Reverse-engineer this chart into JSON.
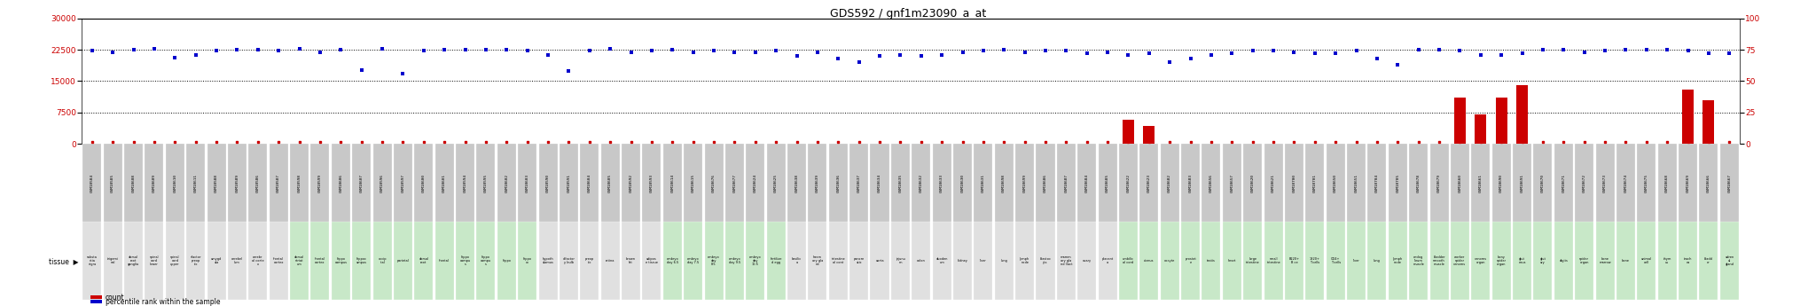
{
  "title": "GDS592 / gnf1m23090_a_at",
  "gsm_ids": [
    "GSM18584",
    "GSM18585",
    "GSM18608",
    "GSM18609",
    "GSM18610",
    "GSM18611",
    "GSM18588",
    "GSM18589",
    "GSM18586",
    "GSM18587",
    "GSM18598",
    "GSM18599",
    "GSM18606",
    "GSM18607",
    "GSM18596",
    "GSM18597",
    "GSM18600",
    "GSM18601",
    "GSM18594",
    "GSM18595",
    "GSM18602",
    "GSM18603",
    "GSM18590",
    "GSM18591",
    "GSM18604",
    "GSM18605",
    "GSM18592",
    "GSM18593",
    "GSM18614",
    "GSM18615",
    "GSM18676",
    "GSM18677",
    "GSM18624",
    "GSM18625",
    "GSM18638",
    "GSM18639",
    "GSM18636",
    "GSM18637",
    "GSM18634",
    "GSM18635",
    "GSM18632",
    "GSM18633",
    "GSM18630",
    "GSM18631",
    "GSM18698",
    "GSM18699",
    "GSM18686",
    "GSM18687",
    "GSM18684",
    "GSM18685",
    "GSM18622",
    "GSM18623",
    "GSM18682",
    "GSM18683",
    "GSM18656",
    "GSM18657",
    "GSM18620",
    "GSM18621",
    "GSM18700",
    "GSM18701",
    "GSM18650",
    "GSM18651",
    "GSM18704",
    "GSM18705",
    "GSM18678",
    "GSM18679",
    "GSM18660",
    "GSM18661",
    "GSM18690",
    "GSM18691",
    "GSM18670",
    "GSM18671",
    "GSM18672",
    "GSM18673",
    "GSM18674",
    "GSM18675",
    "GSM18668",
    "GSM18669",
    "GSM18666",
    "GSM18667"
  ],
  "tissue_labels": [
    "substa\nntia\nnigra",
    "trigemi\nnal",
    "dorsal\nroot\nganglia",
    "spinal\ncord\nlower",
    "spinal\ncord\nupper",
    "sfactor\npreop\ntic",
    "amygd\nala",
    "cerebel\nlum",
    "cerebr\nal corte\nx",
    "frontal\ncortex",
    "dorsal\nstriat\num",
    "frontal\ncortex",
    "hippo\ncampus",
    "hippoc\nampus",
    "occip\nital",
    "parietal",
    "dorsal\nroot",
    "frontal",
    "hippo\ncampu\ns",
    "hippo\ncampu\ns",
    "hippo",
    "hippo\noc",
    "hypoth\nalamus",
    "olfactor\ny bulb",
    "preop\ntic",
    "retina",
    "brown\nfat",
    "adipos\ne tissue",
    "embryo\nday 6.5",
    "embryo\nday 7.5",
    "embryo\nday\n8.5",
    "embryo\nday 9.5",
    "embryo\nday\n10.5",
    "fertilize\nd egg",
    "basilic\na",
    "haem\nary gla\nnd",
    "intestine\nal cont",
    "pancre\natic",
    "aorta",
    "jejunu\nm",
    "colon",
    "duoden\num",
    "kidney",
    "liver",
    "lung",
    "lymph\nnode",
    "blastoc\nyts",
    "mamm\nary gla\nnd (lact",
    "ovary",
    "placent\na",
    "umbilic\nal cord",
    "uterus",
    "oocyte",
    "prostat\ne",
    "testis",
    "heart",
    "large\nintestine",
    "small\nintestine",
    "B220+\nB ce",
    "1820+\nT cells",
    "CD4+\nT cells",
    "liver",
    "lung",
    "lymph\nnode",
    "endog\nlieum\nmuscle",
    "bladder\nsmooth\nmuscle",
    "worker\nspider\nvenoms",
    "venoms\norgan",
    "bony\nspider\norgan",
    "glut\neous",
    "glut\nary",
    "digits",
    "spider\norgan",
    "bone\nmarrow",
    "bone",
    "animal\ncell",
    "thym\nus",
    "trach\nea",
    "bladd\ner",
    "adren\nal\ngland"
  ],
  "percentile_values": [
    74,
    73,
    75,
    76,
    69,
    71,
    74,
    75,
    75,
    74,
    76,
    73,
    75,
    59,
    76,
    56,
    74,
    75,
    75,
    75,
    75,
    74,
    71,
    58,
    74,
    76,
    73,
    74,
    75,
    73,
    74,
    73,
    73,
    74,
    70,
    73,
    68,
    65,
    70,
    71,
    70,
    71,
    73,
    74,
    75,
    73,
    74,
    74,
    72,
    73,
    71,
    72,
    65,
    68,
    71,
    72,
    74,
    74,
    73,
    72,
    72,
    74,
    68,
    63,
    75,
    75,
    74,
    71,
    71,
    72,
    75,
    75,
    73,
    74,
    75,
    75,
    75,
    74,
    72,
    72
  ],
  "count_values": [
    0,
    0,
    0,
    0,
    0,
    0,
    0,
    0,
    0,
    0,
    0,
    0,
    0,
    0,
    0,
    0,
    0,
    0,
    0,
    0,
    0,
    0,
    0,
    0,
    0,
    0,
    0,
    0,
    0,
    0,
    0,
    0,
    0,
    0,
    0,
    0,
    0,
    0,
    0,
    0,
    0,
    0,
    0,
    0,
    0,
    0,
    0,
    0,
    0,
    0,
    5800,
    4200,
    0,
    0,
    0,
    0,
    0,
    0,
    0,
    0,
    0,
    0,
    0,
    0,
    0,
    0,
    11000,
    7000,
    11000,
    14000,
    0,
    0,
    0,
    0,
    0,
    0,
    0,
    13000,
    10500,
    0
  ],
  "tissue_bg_colors": [
    "#e0e0e0",
    "#e0e0e0",
    "#e0e0e0",
    "#e0e0e0",
    "#e0e0e0",
    "#e0e0e0",
    "#e0e0e0",
    "#e0e0e0",
    "#e0e0e0",
    "#e0e0e0",
    "#c8e8c8",
    "#c8e8c8",
    "#c8e8c8",
    "#c8e8c8",
    "#c8e8c8",
    "#c8e8c8",
    "#c8e8c8",
    "#c8e8c8",
    "#c8e8c8",
    "#c8e8c8",
    "#c8e8c8",
    "#c8e8c8",
    "#e0e0e0",
    "#e0e0e0",
    "#e0e0e0",
    "#e0e0e0",
    "#e0e0e0",
    "#e0e0e0",
    "#c8e8c8",
    "#c8e8c8",
    "#c8e8c8",
    "#c8e8c8",
    "#c8e8c8",
    "#c8e8c8",
    "#e0e0e0",
    "#e0e0e0",
    "#e0e0e0",
    "#e0e0e0",
    "#e0e0e0",
    "#e0e0e0",
    "#e0e0e0",
    "#e0e0e0",
    "#e0e0e0",
    "#e0e0e0",
    "#e0e0e0",
    "#e0e0e0",
    "#e0e0e0",
    "#e0e0e0",
    "#e0e0e0",
    "#e0e0e0",
    "#c8e8c8",
    "#c8e8c8",
    "#c8e8c8",
    "#c8e8c8",
    "#c8e8c8",
    "#c8e8c8",
    "#c8e8c8",
    "#c8e8c8",
    "#c8e8c8",
    "#c8e8c8",
    "#c8e8c8",
    "#c8e8c8",
    "#c8e8c8",
    "#c8e8c8",
    "#c8e8c8",
    "#c8e8c8",
    "#c8e8c8",
    "#c8e8c8",
    "#c8e8c8",
    "#c8e8c8",
    "#c8e8c8",
    "#c8e8c8",
    "#c8e8c8",
    "#c8e8c8",
    "#c8e8c8",
    "#c8e8c8",
    "#c8e8c8",
    "#c8e8c8",
    "#c8e8c8",
    "#c8e8c8"
  ],
  "ylim_left": [
    0,
    30000
  ],
  "ylim_right": [
    0,
    100
  ],
  "left_yticks": [
    0,
    7500,
    15000,
    22500,
    30000
  ],
  "right_yticks": [
    0,
    25,
    50,
    75,
    100
  ],
  "tick_color": "#cc0000",
  "count_color": "#cc0000",
  "percentile_color": "#0000cc",
  "dotted_line_color": "#000000",
  "bg_color": "#ffffff",
  "gsm_box_color": "#c8c8c8",
  "legend_count_label": "count",
  "legend_pct_label": "percentile rank within the sample",
  "tissue_label": "tissue"
}
